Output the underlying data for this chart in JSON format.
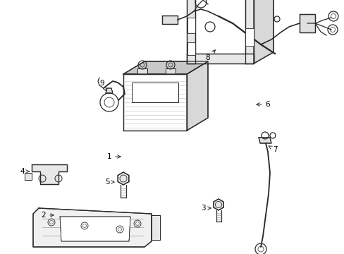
{
  "background_color": "#ffffff",
  "line_color": "#2a2a2a",
  "label_color": "#000000",
  "fig_width": 4.89,
  "fig_height": 3.6,
  "dpi": 100,
  "hatch_color": "#bbbbbb"
}
